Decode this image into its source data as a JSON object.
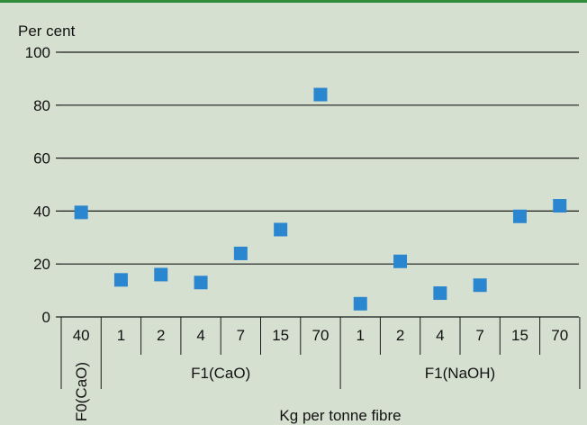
{
  "colors": {
    "background": "#d6e0d0",
    "top_border": "#2e8b3c",
    "grid": "#1a1a1a",
    "marker": "#2a86cf"
  },
  "chart_data": {
    "type": "scatter",
    "y_unit_label": "Per cent",
    "xlabel": "Kg per tonne fibre",
    "ylim": [
      0,
      100
    ],
    "yticks": [
      "0",
      "20",
      "40",
      "60",
      "80",
      "100"
    ],
    "grid": true,
    "categories": [
      "40",
      "1",
      "2",
      "4",
      "7",
      "15",
      "70",
      "1",
      "2",
      "4",
      "7",
      "15",
      "70"
    ],
    "groups": [
      {
        "label": "F0(CaO)",
        "count": 1
      },
      {
        "label": "F1(CaO)",
        "count": 6
      },
      {
        "label": "F1(NaOH)",
        "count": 6
      }
    ],
    "values": [
      39.5,
      14,
      16,
      13,
      24,
      33,
      84,
      5,
      21,
      9,
      12,
      38,
      42
    ]
  }
}
